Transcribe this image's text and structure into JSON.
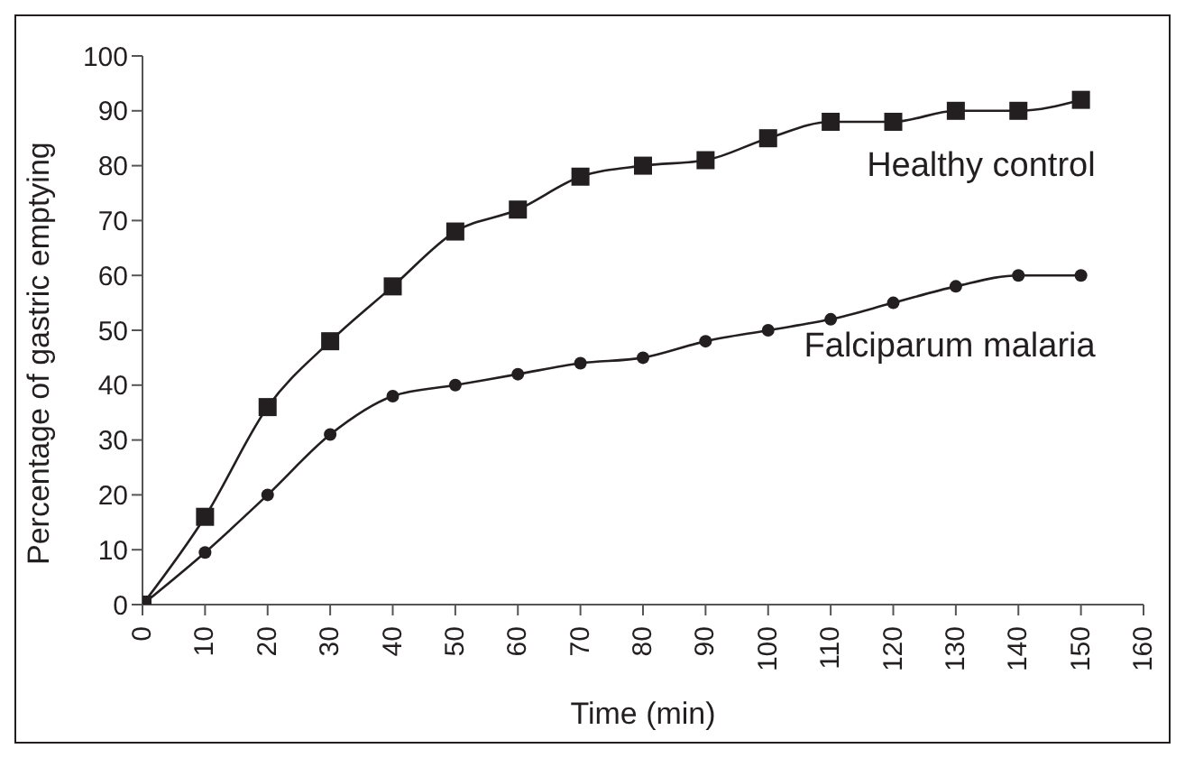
{
  "chart_data": {
    "type": "line",
    "xlabel": "Time (min)",
    "ylabel": "Percentage of gastric emptying",
    "x": [
      0,
      10,
      20,
      30,
      40,
      50,
      60,
      70,
      80,
      90,
      100,
      110,
      120,
      130,
      140,
      150
    ],
    "xlim": [
      0,
      160
    ],
    "xticks": [
      0,
      10,
      20,
      30,
      40,
      50,
      60,
      70,
      80,
      90,
      100,
      110,
      120,
      130,
      140,
      150,
      160
    ],
    "ylim": [
      0,
      100
    ],
    "yticks": [
      0,
      10,
      20,
      30,
      40,
      50,
      60,
      70,
      80,
      90,
      100
    ],
    "grid": false,
    "legend": false,
    "line_style": "solid",
    "series": [
      {
        "name": "Healthy control",
        "color": "#231f20",
        "marker": "square",
        "values": [
          0,
          16,
          36,
          48,
          58,
          68,
          72,
          78,
          80,
          81,
          85,
          88,
          88,
          90,
          90,
          92
        ]
      },
      {
        "name": "Falciparum malaria",
        "color": "#231f20",
        "marker": "circle",
        "values": [
          0,
          9.5,
          20,
          31,
          38,
          40,
          42,
          44,
          45,
          48,
          50,
          52,
          55,
          58,
          60,
          60
        ]
      }
    ]
  }
}
